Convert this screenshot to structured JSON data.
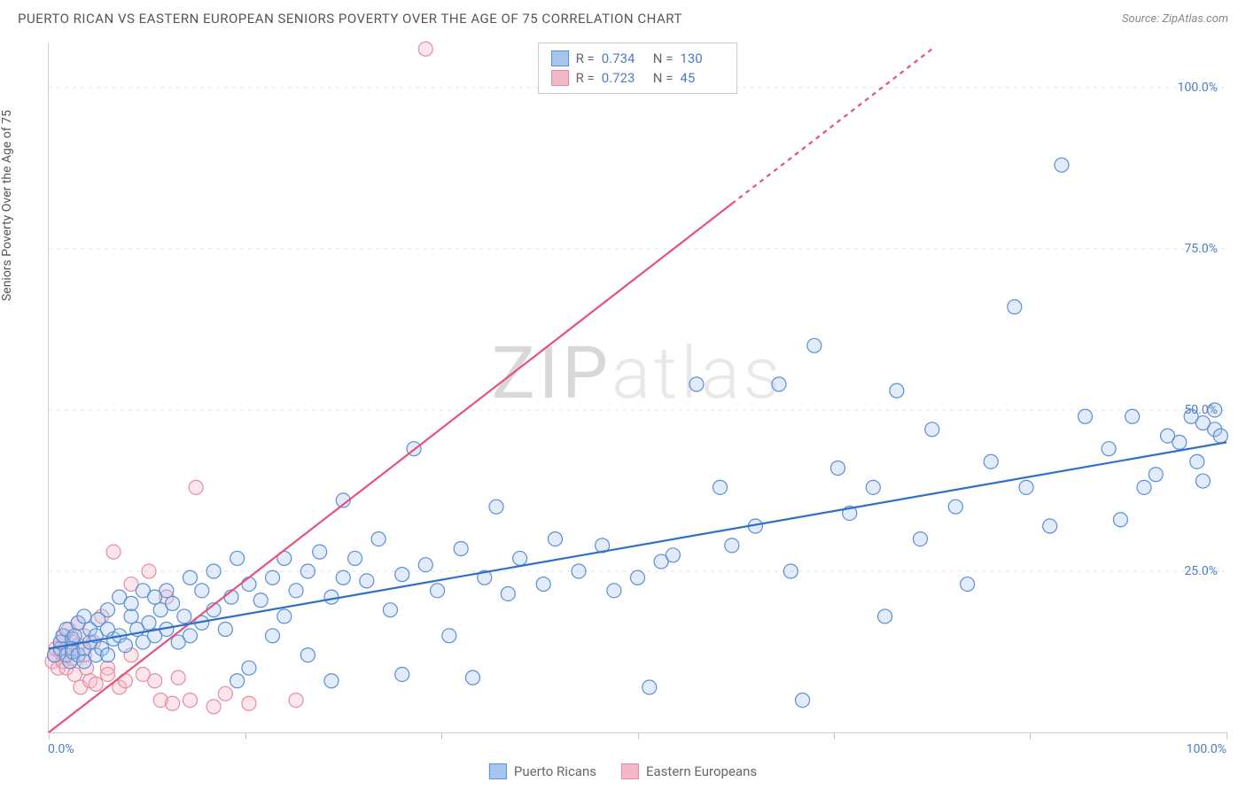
{
  "header": {
    "title": "PUERTO RICAN VS EASTERN EUROPEAN SENIORS POVERTY OVER THE AGE OF 75 CORRELATION CHART",
    "source_label": "Source:",
    "source_value": "ZipAtlas.com"
  },
  "watermark": {
    "part1": "ZIP",
    "part2": "atlas"
  },
  "chart": {
    "type": "scatter",
    "background_color": "#ffffff",
    "grid_color": "#e0e0e0",
    "axis_color": "#cccccc",
    "y_axis_title": "Seniors Poverty Over the Age of 75",
    "xlim": [
      0,
      100
    ],
    "ylim": [
      0,
      107
    ],
    "x_ticks": [
      0,
      16.67,
      33.33,
      50,
      66.67,
      83.33,
      100
    ],
    "y_gridlines": [
      25,
      50,
      75,
      100
    ],
    "y_tick_labels": [
      "25.0%",
      "50.0%",
      "75.0%",
      "100.0%"
    ],
    "x_min_label": "0.0%",
    "x_max_label": "100.0%",
    "axis_label_color": "#4a7ec9",
    "marker_radius": 8,
    "marker_stroke_width": 1.2,
    "marker_fill_opacity": 0.35,
    "line_width": 2.2
  },
  "series_a": {
    "name": "Puerto Ricans",
    "color_fill": "#a8c6ed",
    "color_stroke": "#5a8fd4",
    "line_color": "#2e6fc9",
    "R": "0.734",
    "N": "130",
    "trend": {
      "x1": 0,
      "y1": 13,
      "x2": 100,
      "y2": 45
    },
    "points": [
      [
        0.5,
        12
      ],
      [
        1,
        13
      ],
      [
        1,
        14
      ],
      [
        1.2,
        15
      ],
      [
        1.5,
        12
      ],
      [
        1.5,
        16
      ],
      [
        1.8,
        11
      ],
      [
        2,
        13
      ],
      [
        2,
        14.5
      ],
      [
        2,
        12.5
      ],
      [
        2.2,
        15
      ],
      [
        2.5,
        17
      ],
      [
        2.5,
        12
      ],
      [
        3,
        13
      ],
      [
        3,
        18
      ],
      [
        3,
        11
      ],
      [
        3.5,
        14
      ],
      [
        3.5,
        16
      ],
      [
        4,
        12
      ],
      [
        4,
        15
      ],
      [
        4.2,
        17.5
      ],
      [
        4.5,
        13
      ],
      [
        5,
        16
      ],
      [
        5,
        19
      ],
      [
        5,
        12
      ],
      [
        5.5,
        14.5
      ],
      [
        6,
        21
      ],
      [
        6,
        15
      ],
      [
        6.5,
        13.5
      ],
      [
        7,
        18
      ],
      [
        7,
        20
      ],
      [
        7.5,
        16
      ],
      [
        8,
        14
      ],
      [
        8,
        22
      ],
      [
        8.5,
        17
      ],
      [
        9,
        21
      ],
      [
        9,
        15
      ],
      [
        9.5,
        19
      ],
      [
        10,
        16
      ],
      [
        10,
        22
      ],
      [
        10.5,
        20
      ],
      [
        11,
        14
      ],
      [
        11.5,
        18
      ],
      [
        12,
        24
      ],
      [
        12,
        15
      ],
      [
        13,
        22
      ],
      [
        13,
        17
      ],
      [
        14,
        19
      ],
      [
        14,
        25
      ],
      [
        15,
        16
      ],
      [
        15.5,
        21
      ],
      [
        16,
        27
      ],
      [
        16,
        8
      ],
      [
        17,
        23
      ],
      [
        17,
        10
      ],
      [
        18,
        20.5
      ],
      [
        19,
        24
      ],
      [
        19,
        15
      ],
      [
        20,
        27
      ],
      [
        20,
        18
      ],
      [
        21,
        22
      ],
      [
        22,
        25
      ],
      [
        22,
        12
      ],
      [
        23,
        28
      ],
      [
        24,
        21
      ],
      [
        24,
        8
      ],
      [
        25,
        24
      ],
      [
        25,
        36
      ],
      [
        26,
        27
      ],
      [
        27,
        23.5
      ],
      [
        28,
        30
      ],
      [
        29,
        19
      ],
      [
        30,
        9
      ],
      [
        30,
        24.5
      ],
      [
        31,
        44
      ],
      [
        32,
        26
      ],
      [
        33,
        22
      ],
      [
        34,
        15
      ],
      [
        35,
        28.5
      ],
      [
        36,
        8.5
      ],
      [
        37,
        24
      ],
      [
        38,
        35
      ],
      [
        39,
        21.5
      ],
      [
        40,
        27
      ],
      [
        42,
        23
      ],
      [
        43,
        30
      ],
      [
        45,
        25
      ],
      [
        47,
        29
      ],
      [
        48,
        22
      ],
      [
        50,
        24
      ],
      [
        51,
        7
      ],
      [
        52,
        26.5
      ],
      [
        53,
        27.5
      ],
      [
        55,
        54
      ],
      [
        57,
        38
      ],
      [
        58,
        29
      ],
      [
        60,
        32
      ],
      [
        62,
        54
      ],
      [
        63,
        25
      ],
      [
        64,
        5
      ],
      [
        65,
        60
      ],
      [
        67,
        41
      ],
      [
        68,
        34
      ],
      [
        70,
        38
      ],
      [
        71,
        18
      ],
      [
        72,
        53
      ],
      [
        74,
        30
      ],
      [
        75,
        47
      ],
      [
        77,
        35
      ],
      [
        78,
        23
      ],
      [
        80,
        42
      ],
      [
        82,
        66
      ],
      [
        83,
        38
      ],
      [
        85,
        32
      ],
      [
        86,
        88
      ],
      [
        88,
        49
      ],
      [
        90,
        44
      ],
      [
        91,
        33
      ],
      [
        92,
        49
      ],
      [
        93,
        38
      ],
      [
        94,
        40
      ],
      [
        95,
        46
      ],
      [
        96,
        45
      ],
      [
        97,
        49
      ],
      [
        97.5,
        42
      ],
      [
        98,
        48
      ],
      [
        98,
        39
      ],
      [
        99,
        50
      ],
      [
        99,
        47
      ],
      [
        99.5,
        46
      ]
    ]
  },
  "series_b": {
    "name": "Eastern Europeans",
    "color_fill": "#f5b8c8",
    "color_stroke": "#e88aa5",
    "line_color": "#e8517a",
    "R": "0.723",
    "N": "45",
    "trend_solid": {
      "x1": 0,
      "y1": 0,
      "x2": 58,
      "y2": 82
    },
    "trend_dash": {
      "x1": 58,
      "y1": 82,
      "x2": 75,
      "y2": 106
    },
    "points": [
      [
        0.3,
        11
      ],
      [
        0.5,
        12
      ],
      [
        0.6,
        13
      ],
      [
        0.8,
        10
      ],
      [
        1,
        14
      ],
      [
        1,
        12.5
      ],
      [
        1.2,
        11
      ],
      [
        1.3,
        15
      ],
      [
        1.5,
        13
      ],
      [
        1.5,
        10
      ],
      [
        1.7,
        16
      ],
      [
        2,
        11.5
      ],
      [
        2,
        14
      ],
      [
        2.2,
        9
      ],
      [
        2.5,
        13.5
      ],
      [
        2.5,
        17
      ],
      [
        2.7,
        7
      ],
      [
        3,
        12
      ],
      [
        3,
        15
      ],
      [
        3.2,
        10
      ],
      [
        3.5,
        8
      ],
      [
        3.8,
        14
      ],
      [
        4,
        7.5
      ],
      [
        4.5,
        18
      ],
      [
        5,
        10
      ],
      [
        5,
        9
      ],
      [
        5.5,
        28
      ],
      [
        6,
        7
      ],
      [
        6.5,
        8
      ],
      [
        7,
        23
      ],
      [
        7,
        12
      ],
      [
        8,
        9
      ],
      [
        8.5,
        25
      ],
      [
        9,
        8
      ],
      [
        9.5,
        5
      ],
      [
        10,
        21
      ],
      [
        10.5,
        4.5
      ],
      [
        11,
        8.5
      ],
      [
        12,
        5
      ],
      [
        12.5,
        38
      ],
      [
        14,
        4
      ],
      [
        15,
        6
      ],
      [
        17,
        4.5
      ],
      [
        21,
        5
      ],
      [
        32,
        106
      ]
    ]
  },
  "legend_top": {
    "r_label": "R =",
    "n_label": "N ="
  },
  "legend_bottom": {
    "a_label": "Puerto Ricans",
    "b_label": "Eastern Europeans"
  }
}
